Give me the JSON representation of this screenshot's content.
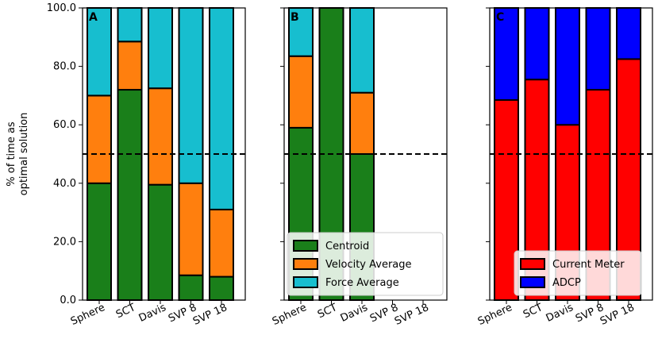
{
  "ylabel_line1": "% of time as",
  "ylabel_line2": "optimal solution",
  "chart_data": [
    {
      "type": "bar",
      "stacked": true,
      "panel": "A",
      "categories": [
        "Sphere",
        "SCT",
        "Davis",
        "SVP 8",
        "SVP 18"
      ],
      "ylim": [
        0,
        100
      ],
      "yticks": [
        "0.0",
        "20.0",
        "40.0",
        "60.0",
        "80.0",
        "100.0"
      ],
      "reference_line": 50,
      "series": [
        {
          "name": "Centroid",
          "color": "#1a7f1a",
          "values": [
            40,
            72,
            39.5,
            8.5,
            8
          ]
        },
        {
          "name": "Velocity Average",
          "color": "#ff7f0e",
          "values": [
            30,
            16.5,
            33,
            31.5,
            23
          ]
        },
        {
          "name": "Force Average",
          "color": "#17becf",
          "values": [
            30,
            11.5,
            27.5,
            60,
            69
          ]
        }
      ],
      "legend": null
    },
    {
      "type": "bar",
      "stacked": true,
      "panel": "B",
      "categories": [
        "Sphere",
        "SCT",
        "Davis",
        "SVP 8",
        "SVP 18"
      ],
      "ylim": [
        0,
        100
      ],
      "reference_line": 50,
      "series": [
        {
          "name": "Centroid",
          "color": "#1a7f1a",
          "values": [
            59,
            100,
            50,
            0,
            0
          ]
        },
        {
          "name": "Velocity Average",
          "color": "#ff7f0e",
          "values": [
            24.5,
            0,
            21,
            0,
            0
          ]
        },
        {
          "name": "Force Average",
          "color": "#17becf",
          "values": [
            16.5,
            0,
            29,
            0,
            0
          ]
        }
      ],
      "legend": {
        "position": "lower-left",
        "entries": [
          "Centroid",
          "Velocity Average",
          "Force Average"
        ]
      }
    },
    {
      "type": "bar",
      "stacked": true,
      "panel": "C",
      "categories": [
        "Sphere",
        "SCT",
        "Davis",
        "SVP 8",
        "SVP 18"
      ],
      "ylim": [
        0,
        100
      ],
      "reference_line": 50,
      "series": [
        {
          "name": "Current Meter",
          "color": "#ff0000",
          "values": [
            68.5,
            75.5,
            60,
            72,
            82.5
          ]
        },
        {
          "name": "ADCP",
          "color": "#0000ff",
          "values": [
            31.5,
            24.5,
            40,
            28,
            17.5
          ]
        }
      ],
      "legend": {
        "position": "lower-right",
        "entries": [
          "Current Meter",
          "ADCP"
        ]
      }
    }
  ]
}
